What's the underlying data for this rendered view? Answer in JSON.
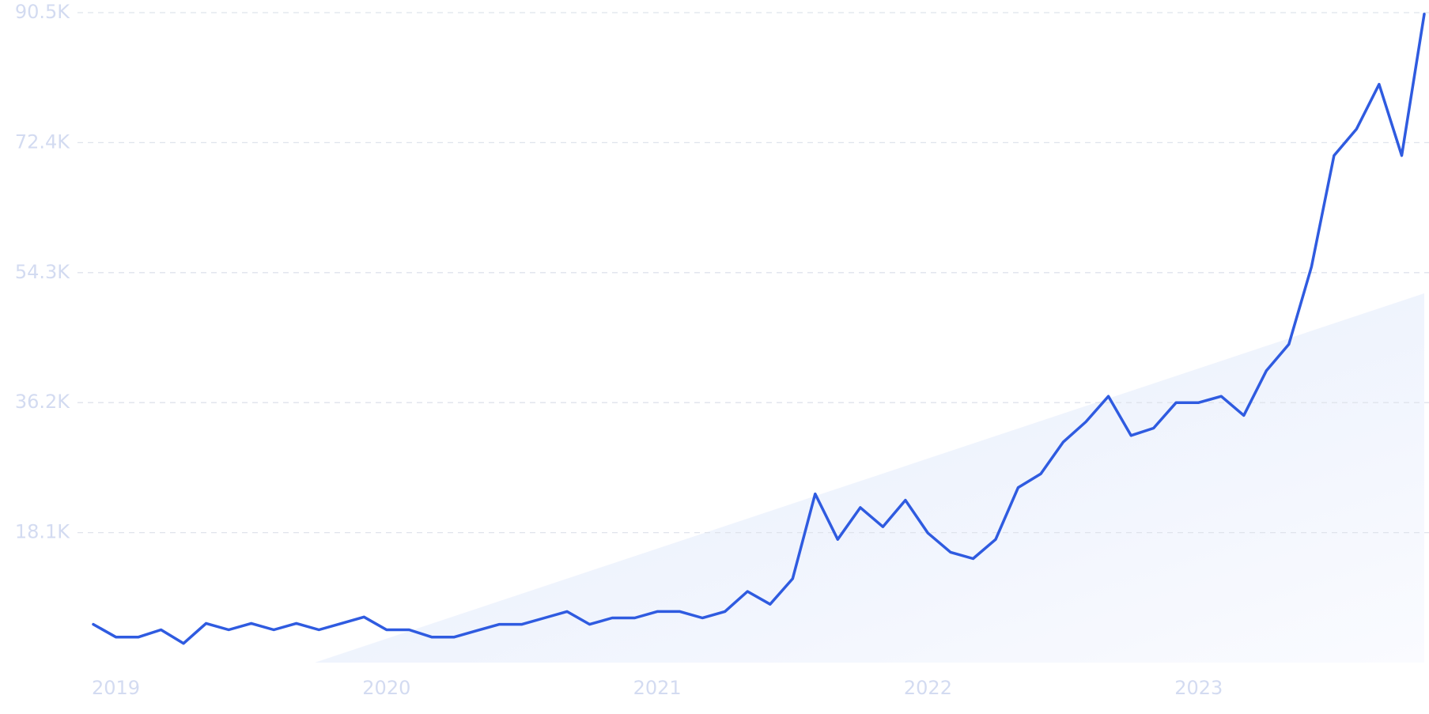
{
  "chart_data": {
    "type": "line",
    "categories": [
      null,
      "2019",
      null,
      null,
      null,
      null,
      null,
      null,
      null,
      null,
      null,
      null,
      null,
      "2020",
      null,
      null,
      null,
      null,
      null,
      null,
      null,
      null,
      null,
      null,
      null,
      "2021",
      null,
      null,
      null,
      null,
      null,
      null,
      null,
      null,
      null,
      null,
      null,
      "2022",
      null,
      null,
      null,
      null,
      null,
      null,
      null,
      null,
      null,
      null,
      null,
      "2023",
      null,
      null,
      null,
      null,
      null,
      null,
      null,
      null,
      null,
      null
    ],
    "series": [
      {
        "color": "#2f5be0",
        "values": [
          5330,
          3560,
          3560,
          4570,
          2670,
          5460,
          4570,
          5460,
          4570,
          5460,
          4570,
          5460,
          6350,
          4570,
          4570,
          3560,
          3560,
          4450,
          5330,
          5330,
          6220,
          7110,
          5330,
          6220,
          6220,
          7110,
          7110,
          6220,
          7110,
          9910,
          8130,
          11680,
          23500,
          17150,
          21590,
          18920,
          22610,
          18030,
          15370,
          14480,
          17150,
          24380,
          26290,
          30730,
          33530,
          37080,
          31620,
          32640,
          36200,
          36200,
          37080,
          34420,
          40640,
          44320,
          55120,
          70610,
          74300,
          80520,
          70610,
          90300
        ]
      }
    ],
    "ylim": [
      0,
      90500
    ],
    "yticks": [
      {
        "value": 18100,
        "label": "18.1K"
      },
      {
        "value": 36200,
        "label": "36.2K"
      },
      {
        "value": 54300,
        "label": "54.3K"
      },
      {
        "value": 72400,
        "label": "72.4K"
      },
      {
        "value": 90500,
        "label": "90.5K"
      }
    ],
    "grid": true
  }
}
